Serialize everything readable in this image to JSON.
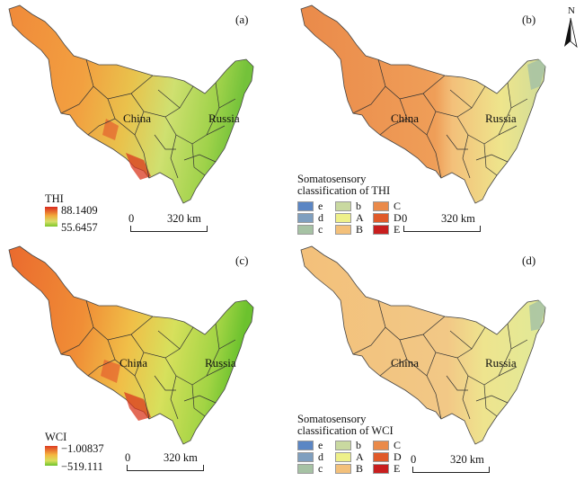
{
  "panels": [
    {
      "letter": "(a)",
      "fill": "thi",
      "labels": {
        "china": "China",
        "russia": "Russia"
      }
    },
    {
      "letter": "(b)",
      "fill": "clsb",
      "labels": {
        "china": "China",
        "russia": "Russia"
      }
    },
    {
      "letter": "(c)",
      "fill": "wci",
      "labels": {
        "china": "China",
        "russia": "Russia"
      }
    },
    {
      "letter": "(d)",
      "fill": "clsd",
      "labels": {
        "china": "China",
        "russia": "Russia"
      }
    }
  ],
  "north_arrow": {
    "label": "N"
  },
  "legend_thi": {
    "title": "THI",
    "max": "88.1409",
    "min": "55.6457"
  },
  "legend_wci": {
    "title": "WCI",
    "max": "−1.00837",
    "min": "−519.111"
  },
  "scale_bar": {
    "zero": "0",
    "distance": "320 km"
  },
  "class_legend_thi": {
    "title_line1": "Somatosensory",
    "title_line2": "classification of THI",
    "items": [
      {
        "code": "e",
        "color": "#5b86c4"
      },
      {
        "code": "b",
        "color": "#c9d9a0"
      },
      {
        "code": "C",
        "color": "#ea8a4a"
      },
      {
        "code": "d",
        "color": "#7f9fbf"
      },
      {
        "code": "A",
        "color": "#eef08a"
      },
      {
        "code": "D",
        "color": "#e05a2a"
      },
      {
        "code": "c",
        "color": "#a6c2a4"
      },
      {
        "code": "B",
        "color": "#f3c07a"
      },
      {
        "code": "E",
        "color": "#c81e1e"
      }
    ]
  },
  "class_legend_wci": {
    "title_line1": "Somatosensory",
    "title_line2": "classification of WCI",
    "items": [
      {
        "code": "e",
        "color": "#5b86c4"
      },
      {
        "code": "b",
        "color": "#c9d9a0"
      },
      {
        "code": "C",
        "color": "#ea8a4a"
      },
      {
        "code": "d",
        "color": "#7f9fbf"
      },
      {
        "code": "A",
        "color": "#eef08a"
      },
      {
        "code": "D",
        "color": "#e05a2a"
      },
      {
        "code": "c",
        "color": "#a6c2a4"
      },
      {
        "code": "B",
        "color": "#f3c07a"
      },
      {
        "code": "E",
        "color": "#c81e1e"
      }
    ]
  }
}
